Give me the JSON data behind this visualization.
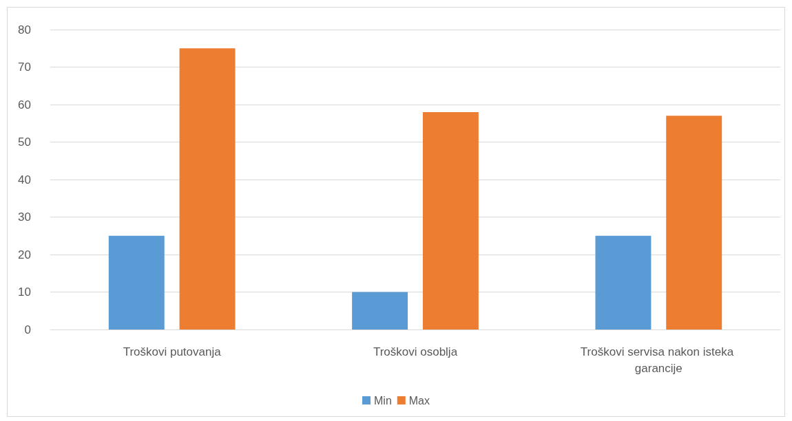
{
  "chart_data": {
    "type": "bar",
    "categories": [
      "Troškovi putovanja",
      "Troškovi osoblja",
      "Troškovi servisa nakon isteka garancije"
    ],
    "series": [
      {
        "name": "Min",
        "color": "#5b9bd5",
        "values": [
          25,
          10,
          25
        ]
      },
      {
        "name": "Max",
        "color": "#ed7d31",
        "values": [
          75,
          58,
          57
        ]
      }
    ],
    "ylim": [
      0,
      80
    ],
    "yticks": [
      0,
      10,
      20,
      30,
      40,
      50,
      60,
      70,
      80
    ],
    "grid": "y",
    "legend": "bottom"
  }
}
